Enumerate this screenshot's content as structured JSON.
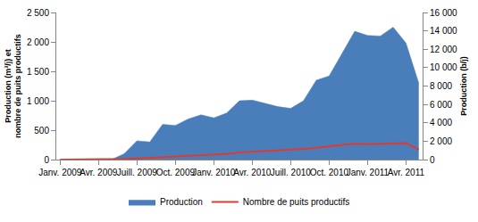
{
  "chart_data": {
    "type": "area",
    "y_label": "Production (m³/j) et nombre de puits productifs",
    "y2_label": "Production (b/j)",
    "categories": [
      "Janv. 2009",
      null,
      null,
      "Avr. 2009",
      null,
      null,
      "Juill. 2009",
      null,
      null,
      "Oct. 2009",
      null,
      null,
      "Janv. 2010",
      null,
      null,
      "Avr. 2010",
      null,
      null,
      "Juill. 2010",
      null,
      null,
      "Oct. 2010",
      null,
      null,
      "Janv. 2011",
      null,
      null,
      "Avr. 2011",
      null
    ],
    "series": [
      {
        "name": "Production",
        "type": "area",
        "color": "#4a7ebb",
        "values": [
          0,
          0,
          0,
          0,
          0,
          100,
          320,
          300,
          600,
          580,
          690,
          760,
          710,
          790,
          1000,
          1010,
          960,
          900,
          870,
          1000,
          1350,
          1420,
          1800,
          2180,
          2110,
          2100,
          2250,
          1980,
          1300
        ]
      },
      {
        "name": "Nombre de puits productifs",
        "type": "line",
        "color": "#e03a2f",
        "values": [
          0,
          0,
          0,
          0,
          0,
          10,
          20,
          30,
          40,
          50,
          60,
          70,
          80,
          100,
          120,
          130,
          140,
          150,
          160,
          180,
          200,
          230,
          250,
          270,
          260,
          270,
          280,
          280,
          170
        ]
      }
    ],
    "ylim": [
      0,
      2500
    ],
    "yticks": [
      0,
      500,
      {
        "value": 1000,
        "label": "1 000"
      },
      {
        "value": 1500,
        "label": "1 500"
      },
      {
        "value": 2000,
        "label": "2 000"
      },
      {
        "value": 2500,
        "label": "2 500"
      }
    ],
    "y2lim": [
      0,
      16000
    ],
    "y2ticks": [
      0,
      {
        "value": 2000,
        "label": "2 000"
      },
      {
        "value": 4000,
        "label": "4 000"
      },
      {
        "value": 6000,
        "label": "6 000"
      },
      {
        "value": 8000,
        "label": "8 000"
      },
      {
        "value": 10000,
        "label": "10 000"
      },
      {
        "value": 12000,
        "label": "12 000"
      },
      {
        "value": 14000,
        "label": "14 000"
      },
      {
        "value": 16000,
        "label": "16 000"
      }
    ],
    "grid": false,
    "legend": "bottom"
  }
}
